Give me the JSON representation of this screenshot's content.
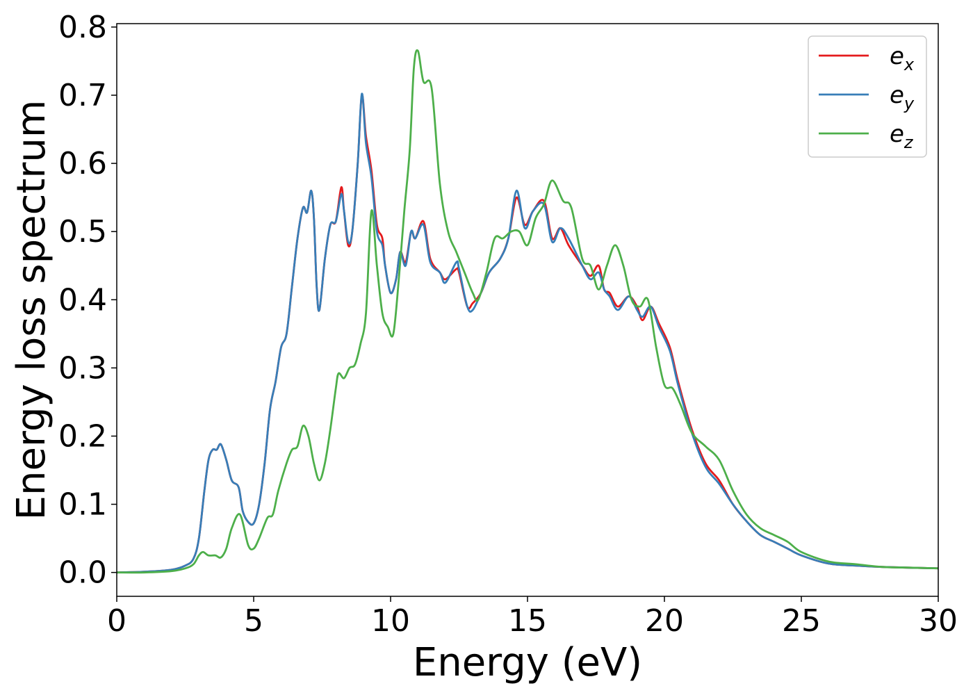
{
  "chart_data": {
    "type": "line",
    "xlabel": "Energy (eV)",
    "ylabel": "Energy loss spectrum",
    "xlim": [
      0,
      30
    ],
    "ylim": [
      -0.035,
      0.805
    ],
    "xticks": [
      0,
      5,
      10,
      15,
      20,
      25,
      30
    ],
    "yticks": [
      0.0,
      0.1,
      0.2,
      0.3,
      0.4,
      0.5,
      0.6,
      0.7,
      0.8
    ],
    "xtick_labels": [
      "0",
      "5",
      "10",
      "15",
      "20",
      "25",
      "30"
    ],
    "ytick_labels": [
      "0.0",
      "0.1",
      "0.2",
      "0.3",
      "0.4",
      "0.5",
      "0.6",
      "0.7",
      "0.8"
    ],
    "grid": false,
    "legend_position": "top-right",
    "series": [
      {
        "name": "e",
        "subscript": "x",
        "color": "#e41a1c",
        "points": [
          [
            0,
            0.0
          ],
          [
            1,
            0.001
          ],
          [
            2,
            0.004
          ],
          [
            2.5,
            0.01
          ],
          [
            2.8,
            0.02
          ],
          [
            3.0,
            0.05
          ],
          [
            3.2,
            0.12
          ],
          [
            3.35,
            0.165
          ],
          [
            3.5,
            0.18
          ],
          [
            3.65,
            0.18
          ],
          [
            3.8,
            0.188
          ],
          [
            4.0,
            0.165
          ],
          [
            4.2,
            0.135
          ],
          [
            4.45,
            0.125
          ],
          [
            4.6,
            0.09
          ],
          [
            4.8,
            0.074
          ],
          [
            5.0,
            0.072
          ],
          [
            5.2,
            0.1
          ],
          [
            5.4,
            0.16
          ],
          [
            5.6,
            0.24
          ],
          [
            5.8,
            0.28
          ],
          [
            6.0,
            0.33
          ],
          [
            6.2,
            0.35
          ],
          [
            6.4,
            0.42
          ],
          [
            6.6,
            0.49
          ],
          [
            6.8,
            0.535
          ],
          [
            6.95,
            0.528
          ],
          [
            7.1,
            0.56
          ],
          [
            7.2,
            0.52
          ],
          [
            7.3,
            0.42
          ],
          [
            7.4,
            0.385
          ],
          [
            7.6,
            0.46
          ],
          [
            7.8,
            0.51
          ],
          [
            8.0,
            0.515
          ],
          [
            8.2,
            0.565
          ],
          [
            8.3,
            0.53
          ],
          [
            8.45,
            0.48
          ],
          [
            8.6,
            0.5
          ],
          [
            8.8,
            0.6
          ],
          [
            8.95,
            0.7
          ],
          [
            9.1,
            0.64
          ],
          [
            9.3,
            0.59
          ],
          [
            9.5,
            0.51
          ],
          [
            9.7,
            0.49
          ],
          [
            9.8,
            0.45
          ],
          [
            10.0,
            0.41
          ],
          [
            10.2,
            0.43
          ],
          [
            10.35,
            0.47
          ],
          [
            10.55,
            0.455
          ],
          [
            10.75,
            0.5
          ],
          [
            10.9,
            0.49
          ],
          [
            11.2,
            0.515
          ],
          [
            11.45,
            0.46
          ],
          [
            11.8,
            0.44
          ],
          [
            12.0,
            0.43
          ],
          [
            12.4,
            0.445
          ],
          [
            12.5,
            0.44
          ],
          [
            12.8,
            0.39
          ],
          [
            13.0,
            0.395
          ],
          [
            13.3,
            0.41
          ],
          [
            13.6,
            0.44
          ],
          [
            14.0,
            0.46
          ],
          [
            14.3,
            0.49
          ],
          [
            14.6,
            0.55
          ],
          [
            14.9,
            0.51
          ],
          [
            15.2,
            0.53
          ],
          [
            15.6,
            0.545
          ],
          [
            15.9,
            0.49
          ],
          [
            16.2,
            0.505
          ],
          [
            16.5,
            0.48
          ],
          [
            17.0,
            0.45
          ],
          [
            17.3,
            0.435
          ],
          [
            17.6,
            0.45
          ],
          [
            17.8,
            0.415
          ],
          [
            18.0,
            0.41
          ],
          [
            18.3,
            0.39
          ],
          [
            18.7,
            0.405
          ],
          [
            19.0,
            0.39
          ],
          [
            19.2,
            0.37
          ],
          [
            19.5,
            0.39
          ],
          [
            19.8,
            0.365
          ],
          [
            20.2,
            0.33
          ],
          [
            20.5,
            0.28
          ],
          [
            21.0,
            0.21
          ],
          [
            21.5,
            0.16
          ],
          [
            22.0,
            0.135
          ],
          [
            22.5,
            0.1
          ],
          [
            23.0,
            0.075
          ],
          [
            23.5,
            0.055
          ],
          [
            24.0,
            0.045
          ],
          [
            24.5,
            0.035
          ],
          [
            25.0,
            0.025
          ],
          [
            26.0,
            0.013
          ],
          [
            27.0,
            0.01
          ],
          [
            28.0,
            0.008
          ],
          [
            30.0,
            0.006
          ]
        ]
      },
      {
        "name": "e",
        "subscript": "y",
        "color": "#377eb8",
        "points": [
          [
            0,
            0.0
          ],
          [
            1,
            0.001
          ],
          [
            2,
            0.004
          ],
          [
            2.5,
            0.01
          ],
          [
            2.8,
            0.02
          ],
          [
            3.0,
            0.05
          ],
          [
            3.2,
            0.12
          ],
          [
            3.35,
            0.165
          ],
          [
            3.5,
            0.18
          ],
          [
            3.65,
            0.18
          ],
          [
            3.8,
            0.188
          ],
          [
            4.0,
            0.165
          ],
          [
            4.2,
            0.135
          ],
          [
            4.45,
            0.125
          ],
          [
            4.6,
            0.09
          ],
          [
            4.8,
            0.074
          ],
          [
            5.0,
            0.072
          ],
          [
            5.2,
            0.1
          ],
          [
            5.4,
            0.16
          ],
          [
            5.6,
            0.24
          ],
          [
            5.8,
            0.28
          ],
          [
            6.0,
            0.33
          ],
          [
            6.2,
            0.35
          ],
          [
            6.4,
            0.42
          ],
          [
            6.6,
            0.49
          ],
          [
            6.8,
            0.535
          ],
          [
            6.95,
            0.528
          ],
          [
            7.1,
            0.56
          ],
          [
            7.2,
            0.52
          ],
          [
            7.3,
            0.42
          ],
          [
            7.4,
            0.385
          ],
          [
            7.6,
            0.46
          ],
          [
            7.8,
            0.51
          ],
          [
            8.0,
            0.515
          ],
          [
            8.2,
            0.555
          ],
          [
            8.3,
            0.53
          ],
          [
            8.45,
            0.485
          ],
          [
            8.6,
            0.5
          ],
          [
            8.8,
            0.6
          ],
          [
            8.95,
            0.702
          ],
          [
            9.1,
            0.63
          ],
          [
            9.3,
            0.58
          ],
          [
            9.5,
            0.5
          ],
          [
            9.7,
            0.48
          ],
          [
            9.8,
            0.45
          ],
          [
            10.0,
            0.41
          ],
          [
            10.2,
            0.43
          ],
          [
            10.35,
            0.47
          ],
          [
            10.55,
            0.45
          ],
          [
            10.75,
            0.5
          ],
          [
            10.9,
            0.49
          ],
          [
            11.2,
            0.51
          ],
          [
            11.45,
            0.455
          ],
          [
            11.8,
            0.44
          ],
          [
            12.0,
            0.425
          ],
          [
            12.4,
            0.455
          ],
          [
            12.5,
            0.445
          ],
          [
            12.8,
            0.39
          ],
          [
            13.0,
            0.385
          ],
          [
            13.3,
            0.41
          ],
          [
            13.6,
            0.44
          ],
          [
            14.0,
            0.46
          ],
          [
            14.3,
            0.49
          ],
          [
            14.6,
            0.56
          ],
          [
            14.9,
            0.505
          ],
          [
            15.2,
            0.53
          ],
          [
            15.6,
            0.54
          ],
          [
            15.9,
            0.485
          ],
          [
            16.2,
            0.505
          ],
          [
            16.5,
            0.49
          ],
          [
            17.0,
            0.45
          ],
          [
            17.3,
            0.43
          ],
          [
            17.6,
            0.44
          ],
          [
            17.8,
            0.415
          ],
          [
            18.0,
            0.405
          ],
          [
            18.3,
            0.385
          ],
          [
            18.7,
            0.405
          ],
          [
            19.0,
            0.385
          ],
          [
            19.2,
            0.375
          ],
          [
            19.5,
            0.39
          ],
          [
            19.8,
            0.36
          ],
          [
            20.2,
            0.325
          ],
          [
            20.5,
            0.275
          ],
          [
            21.0,
            0.205
          ],
          [
            21.5,
            0.155
          ],
          [
            22.0,
            0.13
          ],
          [
            22.5,
            0.1
          ],
          [
            23.0,
            0.075
          ],
          [
            23.5,
            0.055
          ],
          [
            24.0,
            0.045
          ],
          [
            24.5,
            0.035
          ],
          [
            25.0,
            0.025
          ],
          [
            26.0,
            0.013
          ],
          [
            27.0,
            0.01
          ],
          [
            28.0,
            0.008
          ],
          [
            30.0,
            0.006
          ]
        ]
      },
      {
        "name": "e",
        "subscript": "z",
        "color": "#4daf4a",
        "points": [
          [
            0,
            0.0
          ],
          [
            1,
            0.0
          ],
          [
            2,
            0.002
          ],
          [
            2.5,
            0.006
          ],
          [
            2.8,
            0.012
          ],
          [
            3.0,
            0.025
          ],
          [
            3.15,
            0.03
          ],
          [
            3.35,
            0.025
          ],
          [
            3.6,
            0.025
          ],
          [
            3.8,
            0.022
          ],
          [
            4.0,
            0.035
          ],
          [
            4.2,
            0.065
          ],
          [
            4.5,
            0.085
          ],
          [
            4.8,
            0.04
          ],
          [
            5.0,
            0.035
          ],
          [
            5.2,
            0.05
          ],
          [
            5.5,
            0.08
          ],
          [
            5.7,
            0.085
          ],
          [
            5.9,
            0.12
          ],
          [
            6.2,
            0.16
          ],
          [
            6.4,
            0.18
          ],
          [
            6.6,
            0.185
          ],
          [
            6.8,
            0.215
          ],
          [
            7.0,
            0.2
          ],
          [
            7.2,
            0.16
          ],
          [
            7.4,
            0.135
          ],
          [
            7.6,
            0.16
          ],
          [
            7.8,
            0.21
          ],
          [
            8.0,
            0.27
          ],
          [
            8.1,
            0.292
          ],
          [
            8.3,
            0.285
          ],
          [
            8.5,
            0.3
          ],
          [
            8.7,
            0.305
          ],
          [
            8.9,
            0.335
          ],
          [
            9.1,
            0.38
          ],
          [
            9.3,
            0.53
          ],
          [
            9.5,
            0.45
          ],
          [
            9.7,
            0.38
          ],
          [
            9.9,
            0.36
          ],
          [
            10.1,
            0.35
          ],
          [
            10.3,
            0.43
          ],
          [
            10.5,
            0.53
          ],
          [
            10.7,
            0.62
          ],
          [
            10.85,
            0.74
          ],
          [
            11.0,
            0.765
          ],
          [
            11.2,
            0.72
          ],
          [
            11.5,
            0.71
          ],
          [
            11.8,
            0.57
          ],
          [
            12.1,
            0.5
          ],
          [
            12.4,
            0.47
          ],
          [
            12.7,
            0.44
          ],
          [
            13.0,
            0.41
          ],
          [
            13.2,
            0.4
          ],
          [
            13.5,
            0.44
          ],
          [
            13.8,
            0.49
          ],
          [
            14.1,
            0.49
          ],
          [
            14.4,
            0.5
          ],
          [
            14.7,
            0.5
          ],
          [
            15.0,
            0.48
          ],
          [
            15.3,
            0.52
          ],
          [
            15.6,
            0.54
          ],
          [
            15.9,
            0.575
          ],
          [
            16.3,
            0.545
          ],
          [
            16.6,
            0.535
          ],
          [
            17.0,
            0.46
          ],
          [
            17.3,
            0.45
          ],
          [
            17.6,
            0.415
          ],
          [
            17.9,
            0.45
          ],
          [
            18.2,
            0.48
          ],
          [
            18.5,
            0.45
          ],
          [
            18.8,
            0.4
          ],
          [
            19.1,
            0.39
          ],
          [
            19.4,
            0.4
          ],
          [
            19.7,
            0.33
          ],
          [
            20.0,
            0.275
          ],
          [
            20.3,
            0.27
          ],
          [
            20.6,
            0.245
          ],
          [
            21.0,
            0.205
          ],
          [
            21.5,
            0.185
          ],
          [
            22.0,
            0.165
          ],
          [
            22.5,
            0.12
          ],
          [
            23.0,
            0.085
          ],
          [
            23.5,
            0.065
          ],
          [
            24.0,
            0.055
          ],
          [
            24.5,
            0.045
          ],
          [
            25.0,
            0.03
          ],
          [
            26.0,
            0.016
          ],
          [
            27.0,
            0.012
          ],
          [
            28.0,
            0.008
          ],
          [
            29.0,
            0.007
          ],
          [
            30.0,
            0.006
          ]
        ]
      }
    ]
  }
}
